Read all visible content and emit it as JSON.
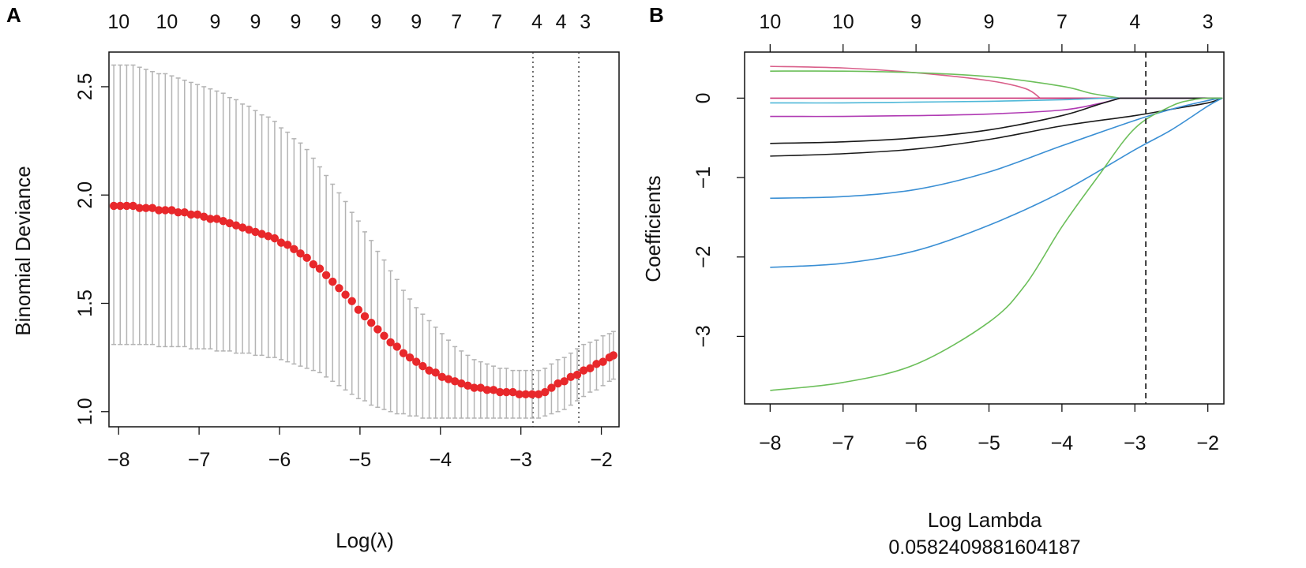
{
  "chart_data": [
    {
      "panel_label": "A",
      "type": "scatter",
      "title": "",
      "xlabel": "Log(λ)",
      "ylabel": "Binomial Deviance",
      "xlim": [
        -8.12,
        -1.78
      ],
      "ylim": [
        0.93,
        2.66
      ],
      "x_ticks": [
        -8,
        -7,
        -6,
        -5,
        -4,
        -3,
        -2
      ],
      "x_tick_labels": [
        "−8",
        "−7",
        "−6",
        "−5",
        "−4",
        "−3",
        "−2"
      ],
      "y_ticks": [
        1.0,
        1.5,
        2.0,
        2.5
      ],
      "y_tick_labels": [
        "1.0",
        "1.5",
        "2.0",
        "2.5"
      ],
      "top_axis": {
        "ticks": [
          -8.0,
          -7.4,
          -6.8,
          -6.3,
          -5.8,
          -5.3,
          -4.8,
          -4.3,
          -3.8,
          -3.3,
          -2.8,
          -2.5,
          -2.2
        ],
        "labels": [
          "10",
          "10",
          "9",
          "9",
          "9",
          "9",
          "9",
          "9",
          "7",
          "7",
          "4",
          "4",
          "3"
        ]
      },
      "vlines": [
        -2.85,
        -2.28
      ],
      "vline_style": "dotted",
      "point_color": "#e8282b",
      "errorbar_color": "#b4b4b4",
      "series": [
        {
          "name": "cv_deviance",
          "x": [
            -8.06,
            -7.98,
            -7.9,
            -7.82,
            -7.74,
            -7.66,
            -7.58,
            -7.5,
            -7.42,
            -7.34,
            -7.26,
            -7.18,
            -7.1,
            -7.02,
            -6.94,
            -6.86,
            -6.78,
            -6.7,
            -6.62,
            -6.54,
            -6.46,
            -6.38,
            -6.3,
            -6.22,
            -6.14,
            -6.06,
            -5.98,
            -5.9,
            -5.82,
            -5.74,
            -5.66,
            -5.58,
            -5.5,
            -5.42,
            -5.34,
            -5.26,
            -5.18,
            -5.1,
            -5.02,
            -4.94,
            -4.86,
            -4.78,
            -4.7,
            -4.62,
            -4.54,
            -4.46,
            -4.38,
            -4.3,
            -4.22,
            -4.14,
            -4.06,
            -3.98,
            -3.9,
            -3.82,
            -3.74,
            -3.66,
            -3.58,
            -3.5,
            -3.42,
            -3.34,
            -3.26,
            -3.18,
            -3.1,
            -3.02,
            -2.94,
            -2.86,
            -2.78,
            -2.7,
            -2.62,
            -2.54,
            -2.46,
            -2.38,
            -2.3,
            -2.22,
            -2.14,
            -2.06,
            -1.98,
            -1.9,
            -1.85
          ],
          "y": [
            1.95,
            1.95,
            1.95,
            1.95,
            1.94,
            1.94,
            1.94,
            1.93,
            1.93,
            1.93,
            1.92,
            1.92,
            1.91,
            1.91,
            1.9,
            1.89,
            1.89,
            1.88,
            1.87,
            1.86,
            1.85,
            1.84,
            1.83,
            1.82,
            1.81,
            1.8,
            1.78,
            1.77,
            1.75,
            1.73,
            1.71,
            1.68,
            1.66,
            1.63,
            1.6,
            1.57,
            1.54,
            1.51,
            1.47,
            1.44,
            1.41,
            1.38,
            1.35,
            1.32,
            1.3,
            1.27,
            1.25,
            1.23,
            1.21,
            1.19,
            1.18,
            1.16,
            1.15,
            1.14,
            1.13,
            1.12,
            1.11,
            1.11,
            1.1,
            1.1,
            1.09,
            1.09,
            1.09,
            1.08,
            1.08,
            1.08,
            1.08,
            1.09,
            1.11,
            1.13,
            1.14,
            1.16,
            1.17,
            1.19,
            1.2,
            1.22,
            1.23,
            1.25,
            1.26
          ],
          "lower": [
            1.31,
            1.31,
            1.31,
            1.31,
            1.31,
            1.31,
            1.31,
            1.3,
            1.3,
            1.3,
            1.3,
            1.3,
            1.29,
            1.29,
            1.29,
            1.29,
            1.28,
            1.28,
            1.28,
            1.27,
            1.27,
            1.27,
            1.26,
            1.26,
            1.25,
            1.25,
            1.24,
            1.23,
            1.22,
            1.21,
            1.2,
            1.19,
            1.18,
            1.16,
            1.14,
            1.12,
            1.1,
            1.08,
            1.06,
            1.05,
            1.03,
            1.02,
            1.01,
            1.0,
            0.99,
            0.99,
            0.98,
            0.98,
            0.97,
            0.97,
            0.97,
            0.97,
            0.97,
            0.97,
            0.97,
            0.97,
            0.97,
            0.97,
            0.97,
            0.97,
            0.97,
            0.97,
            0.97,
            0.97,
            0.97,
            0.97,
            0.97,
            0.98,
            0.99,
            1.0,
            1.01,
            1.03,
            1.05,
            1.07,
            1.09,
            1.1,
            1.12,
            1.14,
            1.15
          ],
          "upper": [
            2.6,
            2.6,
            2.6,
            2.6,
            2.59,
            2.58,
            2.57,
            2.56,
            2.56,
            2.55,
            2.54,
            2.53,
            2.52,
            2.51,
            2.5,
            2.49,
            2.48,
            2.47,
            2.45,
            2.44,
            2.42,
            2.41,
            2.39,
            2.37,
            2.36,
            2.34,
            2.31,
            2.29,
            2.26,
            2.24,
            2.21,
            2.17,
            2.13,
            2.09,
            2.05,
            2.01,
            1.97,
            1.92,
            1.88,
            1.83,
            1.79,
            1.74,
            1.7,
            1.65,
            1.61,
            1.56,
            1.52,
            1.48,
            1.45,
            1.42,
            1.39,
            1.36,
            1.33,
            1.3,
            1.28,
            1.26,
            1.24,
            1.23,
            1.22,
            1.21,
            1.2,
            1.2,
            1.19,
            1.19,
            1.19,
            1.19,
            1.19,
            1.2,
            1.22,
            1.24,
            1.25,
            1.27,
            1.29,
            1.31,
            1.32,
            1.33,
            1.35,
            1.36,
            1.37
          ]
        }
      ]
    },
    {
      "panel_label": "B",
      "type": "line",
      "title": "",
      "xlabel": "Log Lambda",
      "xlabel_sub": "0.0582409881604187",
      "ylabel": "Coefficients",
      "xlim": [
        -8.35,
        -1.78
      ],
      "ylim": [
        -3.85,
        0.58
      ],
      "x_ticks": [
        -8,
        -7,
        -6,
        -5,
        -4,
        -3,
        -2
      ],
      "x_tick_labels": [
        "−8",
        "−7",
        "−6",
        "−5",
        "−4",
        "−3",
        "−2"
      ],
      "y_ticks": [
        -3,
        -2,
        -1,
        0
      ],
      "y_tick_labels": [
        "−3",
        "−2",
        "−1",
        "0"
      ],
      "top_axis": {
        "ticks": [
          -8,
          -7,
          -6,
          -5,
          -4,
          -3,
          -2
        ],
        "labels": [
          "10",
          "10",
          "9",
          "9",
          "7",
          "4",
          "3"
        ]
      },
      "vlines": [
        -2.85
      ],
      "vline_style": "dashed",
      "series": [
        {
          "name": "coef_1",
          "color": "#d95f8a",
          "x": [
            -8,
            -7,
            -6,
            -5,
            -4.5,
            -4.3
          ],
          "y": [
            0.4,
            0.38,
            0.32,
            0.22,
            0.12,
            0.0
          ]
        },
        {
          "name": "coef_2",
          "color": "#6cbf5a",
          "x": [
            -8,
            -7,
            -6,
            -5,
            -4,
            -3.6,
            -3.2
          ],
          "y": [
            0.34,
            0.34,
            0.32,
            0.27,
            0.15,
            0.06,
            0.0
          ]
        },
        {
          "name": "coef_3",
          "color": "#cc3377",
          "x": [
            -8,
            -7,
            -6,
            -5,
            -4.2
          ],
          "y": [
            0.0,
            0.0,
            0.0,
            0.0,
            0.0
          ]
        },
        {
          "name": "coef_4",
          "color": "#4fb8d8",
          "x": [
            -8,
            -7,
            -6,
            -5,
            -4,
            -3.4
          ],
          "y": [
            -0.06,
            -0.06,
            -0.05,
            -0.04,
            -0.02,
            0.0
          ]
        },
        {
          "name": "coef_5",
          "color": "#b03ab3",
          "x": [
            -8,
            -7,
            -6,
            -5,
            -4,
            -3.5,
            -3.2
          ],
          "y": [
            -0.23,
            -0.23,
            -0.22,
            -0.2,
            -0.15,
            -0.07,
            0.0
          ]
        },
        {
          "name": "coef_6",
          "color": "#1a1a1a",
          "x": [
            -8,
            -7,
            -6,
            -5,
            -4,
            -3.5,
            -3.2
          ],
          "y": [
            -0.57,
            -0.55,
            -0.5,
            -0.4,
            -0.22,
            -0.08,
            0.0
          ]
        },
        {
          "name": "coef_7",
          "color": "#1a1a1a",
          "x": [
            -8,
            -7,
            -6,
            -5,
            -4,
            -3,
            -2.5,
            -2.0,
            -1.8
          ],
          "y": [
            -0.73,
            -0.7,
            -0.64,
            -0.52,
            -0.35,
            -0.22,
            -0.14,
            -0.06,
            0.0
          ]
        },
        {
          "name": "coef_8",
          "color": "#3a8fd4",
          "x": [
            -8,
            -7,
            -6,
            -5,
            -4,
            -3,
            -2.5,
            -2.0,
            -1.8
          ],
          "y": [
            -1.26,
            -1.24,
            -1.15,
            -0.93,
            -0.6,
            -0.28,
            -0.14,
            -0.03,
            0.0
          ]
        },
        {
          "name": "coef_9",
          "color": "#3a8fd4",
          "x": [
            -8,
            -7,
            -6,
            -5,
            -4,
            -3,
            -2.5,
            -2.0,
            -1.8
          ],
          "y": [
            -2.13,
            -2.08,
            -1.92,
            -1.6,
            -1.18,
            -0.65,
            -0.4,
            -0.1,
            0.0
          ]
        },
        {
          "name": "coef_10",
          "color": "#6cbf5a",
          "x": [
            -8,
            -7,
            -6,
            -5,
            -4.5,
            -4,
            -3.5,
            -3,
            -2.5,
            -2.2,
            -2.0
          ],
          "y": [
            -3.68,
            -3.58,
            -3.35,
            -2.82,
            -2.35,
            -1.62,
            -0.98,
            -0.38,
            -0.1,
            -0.02,
            0.0
          ]
        }
      ]
    }
  ]
}
